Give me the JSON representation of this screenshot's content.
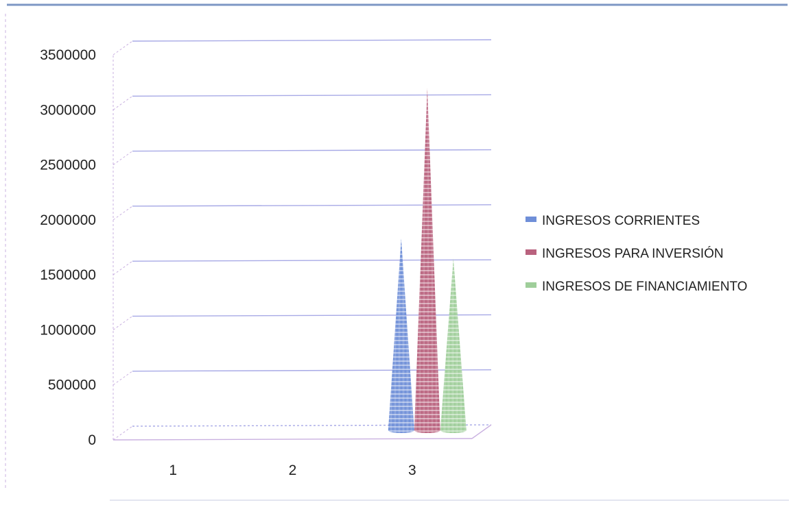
{
  "chart_data": {
    "type": "bar",
    "shape": "cone",
    "categories": [
      "1",
      "2",
      "3"
    ],
    "series": [
      {
        "name": "INGRESOS CORRIENTES",
        "values": [
          0,
          0,
          1830000
        ],
        "color": "#6f8fd8"
      },
      {
        "name": "INGRESOS PARA INVERSIÓN",
        "values": [
          0,
          0,
          3200000
        ],
        "color": "#b9627e"
      },
      {
        "name": "INGRESOS DE FINANCIAMIENTO",
        "values": [
          0,
          0,
          1650000
        ],
        "color": "#9fce9a"
      }
    ],
    "ylim": [
      0,
      3500000
    ],
    "yticks": [
      0,
      500000,
      1000000,
      1500000,
      2000000,
      2500000,
      3000000,
      3500000
    ],
    "grid": true,
    "legend_position": "right",
    "gridline_color": "#a7a9e6",
    "axis_color": "#c9b0e0"
  }
}
